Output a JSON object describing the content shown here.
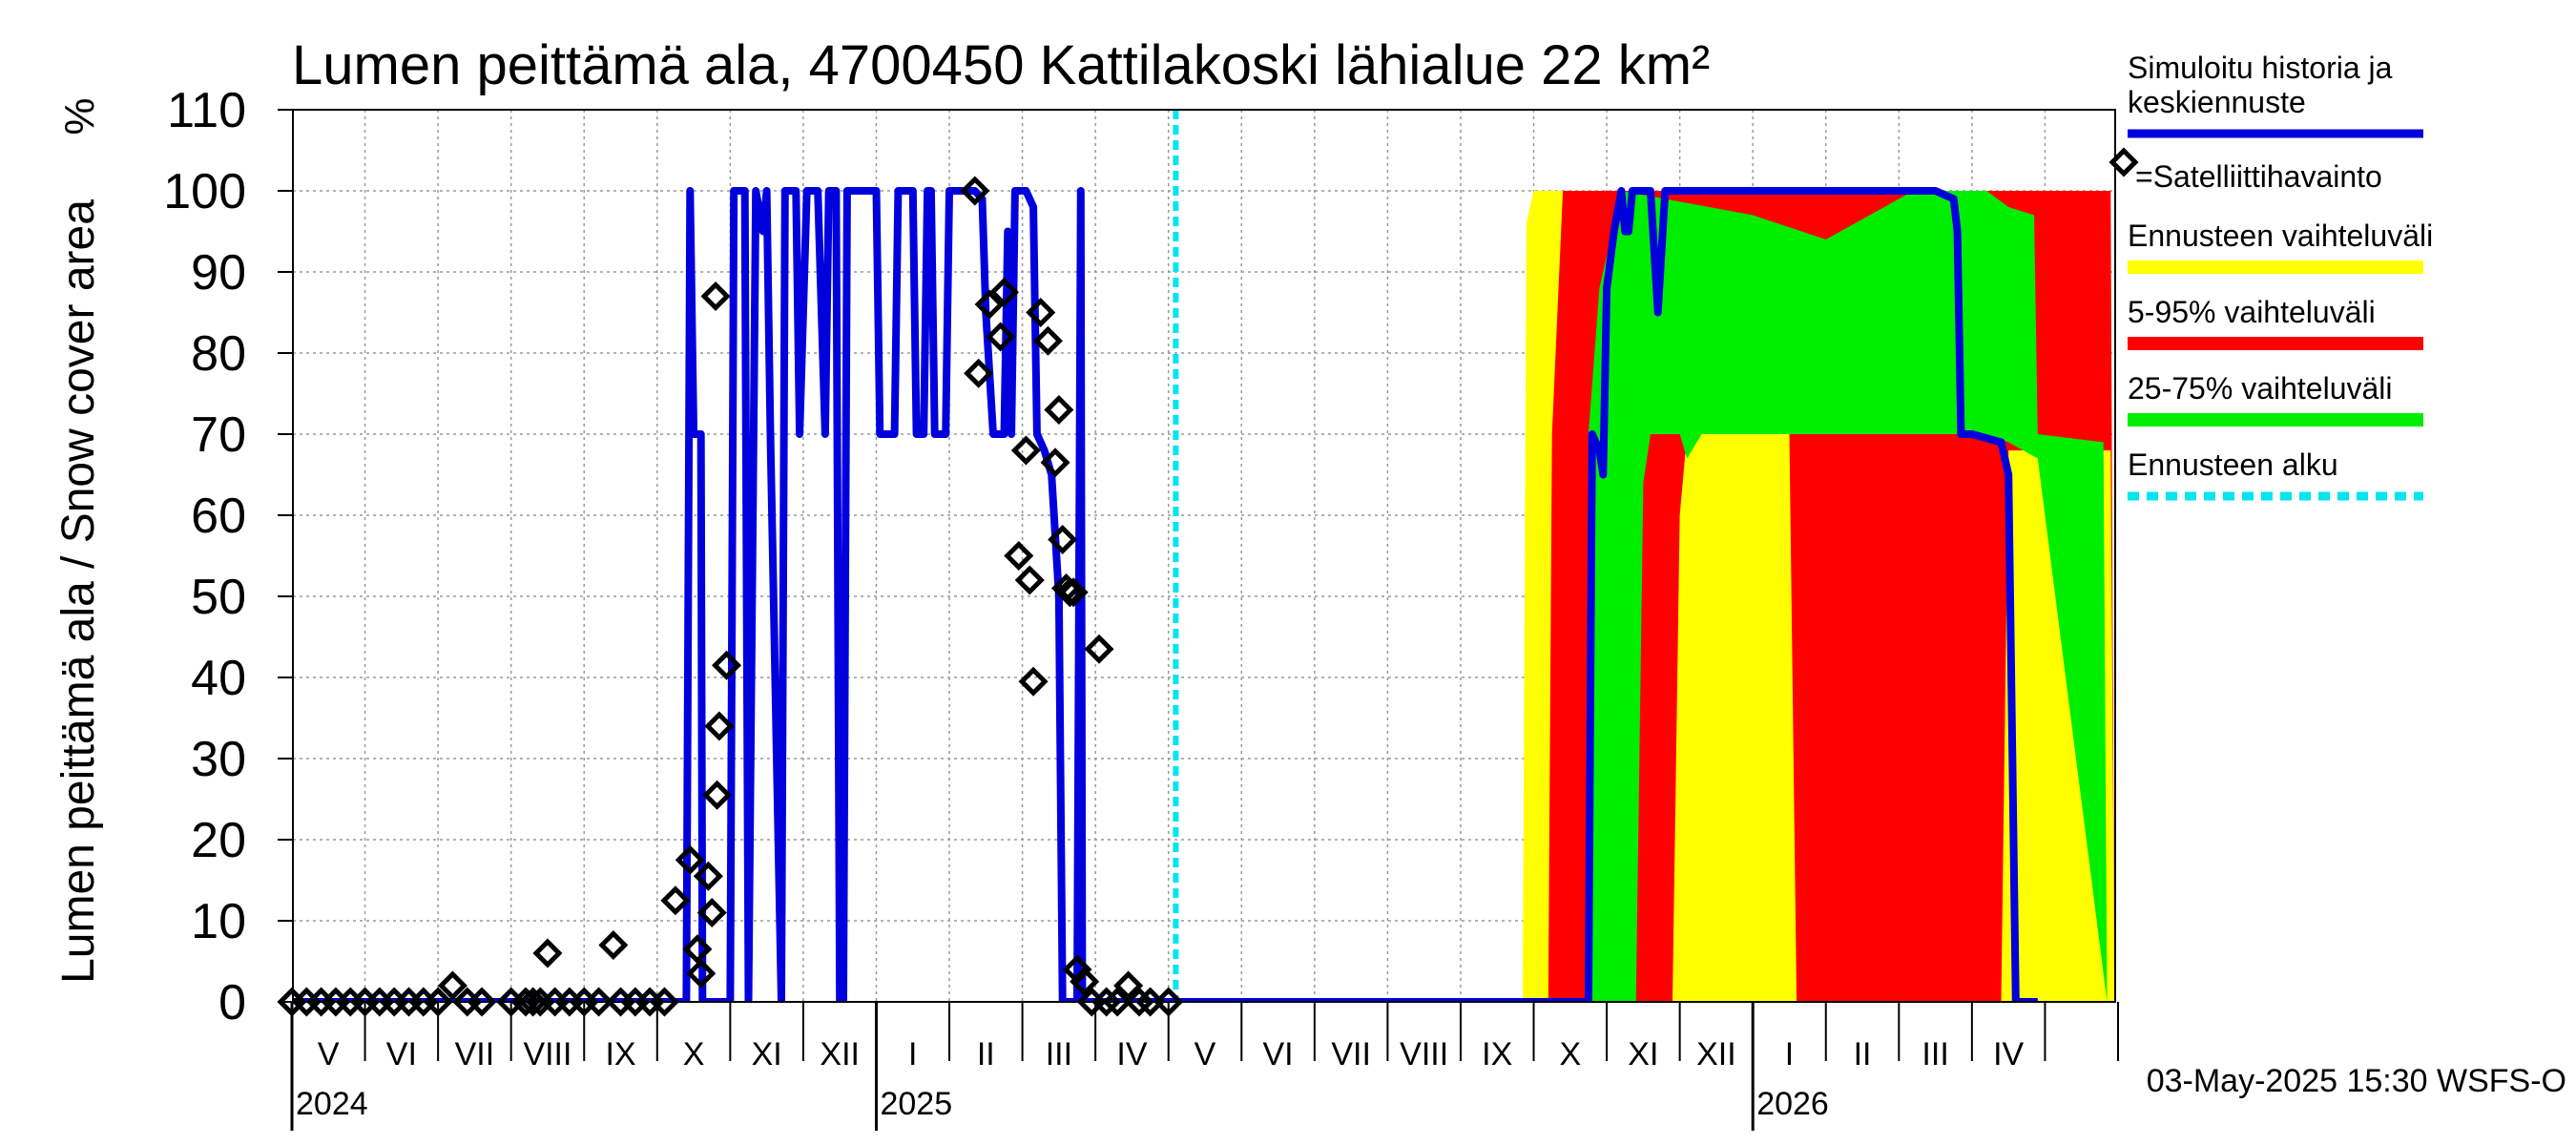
{
  "chart_data": {
    "type": "area",
    "title": "Lumen peittämä ala, 4700450 Kattilakoski lähialue 22 km²",
    "ylabel": "Lumen peittämä ala / Snow cover area",
    "yunit": "%",
    "ylim": [
      0,
      110
    ],
    "yticks": [
      0,
      10,
      20,
      30,
      40,
      50,
      60,
      70,
      80,
      90,
      100,
      110
    ],
    "x_range_months": [
      0,
      25
    ],
    "x_note": "month index from start of May 2024",
    "month_labels": [
      "V",
      "VI",
      "VII",
      "VIII",
      "IX",
      "X",
      "XI",
      "XII",
      "I",
      "II",
      "III",
      "IV",
      "V",
      "VI",
      "VII",
      "VIII",
      "IX",
      "X",
      "XI",
      "XII",
      "I",
      "II",
      "III",
      "IV"
    ],
    "year_labels": [
      {
        "label": "2024",
        "month": 0
      },
      {
        "label": "2025",
        "month": 8
      },
      {
        "label": "2026",
        "month": 20
      }
    ],
    "forecast_start_month": 12.1,
    "legend": [
      {
        "label": "Simuloitu historia ja keskiennuste",
        "color": "#0000dd",
        "style": "line"
      },
      {
        "label": "=Satelliittihavainto",
        "color": "#000000",
        "style": "diamond"
      },
      {
        "label": "Ennusteen vaihteluväli",
        "color": "#ffff00",
        "style": "band"
      },
      {
        "label": "5-95% vaihteluväli",
        "color": "#ff0000",
        "style": "band"
      },
      {
        "label": "25-75% vaihteluväli",
        "color": "#00ee00",
        "style": "band"
      },
      {
        "label": "Ennusteen alku",
        "color": "#00e5ee",
        "style": "dashed"
      }
    ],
    "series": [
      {
        "name": "Simuloitu historia ja keskiennuste",
        "color": "#0000dd",
        "points": [
          [
            0,
            0
          ],
          [
            5.4,
            0
          ],
          [
            5.45,
            100
          ],
          [
            5.5,
            70
          ],
          [
            5.6,
            70
          ],
          [
            5.62,
            0
          ],
          [
            6.0,
            0
          ],
          [
            6.05,
            100
          ],
          [
            6.2,
            100
          ],
          [
            6.25,
            0
          ],
          [
            6.35,
            100
          ],
          [
            6.45,
            95
          ],
          [
            6.5,
            100
          ],
          [
            6.55,
            70
          ],
          [
            6.7,
            0
          ],
          [
            6.75,
            100
          ],
          [
            6.9,
            100
          ],
          [
            6.95,
            70
          ],
          [
            7.05,
            100
          ],
          [
            7.2,
            100
          ],
          [
            7.3,
            70
          ],
          [
            7.35,
            100
          ],
          [
            7.45,
            100
          ],
          [
            7.5,
            0
          ],
          [
            7.55,
            0
          ],
          [
            7.6,
            100
          ],
          [
            8.0,
            100
          ],
          [
            8.05,
            70
          ],
          [
            8.25,
            70
          ],
          [
            8.3,
            100
          ],
          [
            8.5,
            100
          ],
          [
            8.55,
            70
          ],
          [
            8.65,
            70
          ],
          [
            8.7,
            100
          ],
          [
            8.75,
            100
          ],
          [
            8.8,
            70
          ],
          [
            8.95,
            70
          ],
          [
            9.0,
            100
          ],
          [
            9.2,
            100
          ],
          [
            9.35,
            100
          ],
          [
            9.45,
            99
          ],
          [
            9.5,
            85
          ],
          [
            9.6,
            70
          ],
          [
            9.75,
            70
          ],
          [
            9.8,
            95
          ],
          [
            9.85,
            70
          ],
          [
            9.9,
            100
          ],
          [
            10.05,
            100
          ],
          [
            10.15,
            98
          ],
          [
            10.2,
            70
          ],
          [
            10.3,
            68
          ],
          [
            10.4,
            65
          ],
          [
            10.5,
            50
          ],
          [
            10.55,
            0
          ],
          [
            10.75,
            0
          ],
          [
            10.8,
            100
          ],
          [
            10.82,
            0
          ],
          [
            12.0,
            0
          ],
          [
            17.6,
            0
          ],
          [
            17.75,
            0
          ],
          [
            17.8,
            70
          ],
          [
            17.9,
            68
          ],
          [
            17.95,
            65
          ],
          [
            18.0,
            88
          ],
          [
            18.1,
            95
          ],
          [
            18.2,
            100
          ],
          [
            18.25,
            95
          ],
          [
            18.3,
            95
          ],
          [
            18.35,
            100
          ],
          [
            18.5,
            100
          ],
          [
            18.6,
            100
          ],
          [
            18.7,
            85
          ],
          [
            18.8,
            100
          ],
          [
            19.0,
            100
          ],
          [
            19.2,
            100
          ],
          [
            20,
            100
          ],
          [
            21,
            100
          ],
          [
            22.5,
            100
          ],
          [
            22.75,
            99
          ],
          [
            22.8,
            95
          ],
          [
            22.85,
            70
          ],
          [
            23.0,
            70
          ],
          [
            23.4,
            69
          ],
          [
            23.5,
            65
          ],
          [
            23.6,
            0
          ],
          [
            23.9,
            0
          ]
        ]
      },
      {
        "name": "Satelliittihavainto",
        "color": "#000000",
        "points": [
          [
            0,
            0
          ],
          [
            0.2,
            0
          ],
          [
            0.4,
            0
          ],
          [
            0.6,
            0
          ],
          [
            0.8,
            0
          ],
          [
            1.0,
            0
          ],
          [
            1.2,
            0
          ],
          [
            1.4,
            0
          ],
          [
            1.6,
            0
          ],
          [
            1.8,
            0
          ],
          [
            2.0,
            0
          ],
          [
            2.2,
            2
          ],
          [
            2.4,
            0
          ],
          [
            2.6,
            0
          ],
          [
            3.0,
            0
          ],
          [
            3.2,
            0
          ],
          [
            3.3,
            0
          ],
          [
            3.4,
            0
          ],
          [
            3.5,
            6
          ],
          [
            3.6,
            0
          ],
          [
            3.8,
            0
          ],
          [
            4.0,
            0
          ],
          [
            4.2,
            0
          ],
          [
            4.4,
            7
          ],
          [
            4.5,
            0
          ],
          [
            4.7,
            0
          ],
          [
            4.9,
            0
          ],
          [
            5.1,
            0
          ],
          [
            5.25,
            12.5
          ],
          [
            5.45,
            17.5
          ],
          [
            5.55,
            6.5
          ],
          [
            5.6,
            3.5
          ],
          [
            5.7,
            15.5
          ],
          [
            5.75,
            11
          ],
          [
            5.8,
            87
          ],
          [
            5.82,
            25.5
          ],
          [
            5.85,
            34
          ],
          [
            5.95,
            41.5
          ],
          [
            9.35,
            100
          ],
          [
            9.4,
            77.5
          ],
          [
            9.55,
            86
          ],
          [
            9.7,
            82
          ],
          [
            9.75,
            87.5
          ],
          [
            9.95,
            55
          ],
          [
            10.05,
            68
          ],
          [
            10.1,
            52
          ],
          [
            10.15,
            39.5
          ],
          [
            10.25,
            85
          ],
          [
            10.35,
            81.5
          ],
          [
            10.45,
            66.5
          ],
          [
            10.5,
            73
          ],
          [
            10.55,
            57
          ],
          [
            10.6,
            51
          ],
          [
            10.65,
            50.5
          ],
          [
            10.7,
            50.5
          ],
          [
            10.75,
            4
          ],
          [
            10.85,
            2.5
          ],
          [
            10.95,
            0
          ],
          [
            11.05,
            43.5
          ],
          [
            11.15,
            0
          ],
          [
            11.3,
            0
          ],
          [
            11.45,
            2
          ],
          [
            11.6,
            0
          ],
          [
            11.75,
            0
          ],
          [
            12.0,
            0
          ]
        ]
      }
    ],
    "bands": [
      {
        "name": "Ennusteen vaihteluväli",
        "color": "#ffff00",
        "upper": [
          [
            16.85,
            0
          ],
          [
            16.9,
            96
          ],
          [
            17.0,
            100
          ],
          [
            24.8,
            100
          ],
          [
            24.9,
            98
          ],
          [
            24.95,
            0
          ]
        ],
        "lower": [
          [
            16.85,
            0
          ],
          [
            24.95,
            0
          ]
        ]
      },
      {
        "name": "5-95% vaihteluväli",
        "color": "#ff0000",
        "upper": [
          [
            17.2,
            0
          ],
          [
            17.25,
            70
          ],
          [
            17.4,
            100
          ],
          [
            24.9,
            100
          ],
          [
            24.95,
            0
          ]
        ],
        "lower": [
          [
            17.2,
            0
          ],
          [
            18.9,
            0
          ],
          [
            19.0,
            60
          ],
          [
            19.1,
            70
          ],
          [
            20.5,
            70
          ],
          [
            20.6,
            0
          ],
          [
            23.4,
            0
          ],
          [
            23.5,
            68
          ],
          [
            24.9,
            68
          ],
          [
            24.95,
            0
          ]
        ]
      },
      {
        "name": "25-75% vaihteluväli",
        "color": "#00ee00",
        "upper": [
          [
            17.7,
            0
          ],
          [
            17.75,
            70
          ],
          [
            17.9,
            88
          ],
          [
            18.2,
            100
          ],
          [
            20,
            97
          ],
          [
            21,
            94
          ],
          [
            22.2,
            100
          ],
          [
            23.2,
            100
          ],
          [
            23.5,
            98
          ],
          [
            23.85,
            97
          ],
          [
            23.9,
            70
          ],
          [
            24.8,
            69
          ],
          [
            24.85,
            0
          ]
        ],
        "lower": [
          [
            17.7,
            0
          ],
          [
            18.4,
            0
          ],
          [
            18.5,
            64
          ],
          [
            18.6,
            70
          ],
          [
            19.0,
            70
          ],
          [
            19.1,
            67
          ],
          [
            19.3,
            70
          ],
          [
            22.5,
            70
          ],
          [
            23.2,
            70
          ],
          [
            23.5,
            69
          ],
          [
            23.9,
            67
          ],
          [
            24.85,
            0
          ]
        ]
      }
    ]
  },
  "footer": "03-May-2025 15:30 WSFS-O"
}
